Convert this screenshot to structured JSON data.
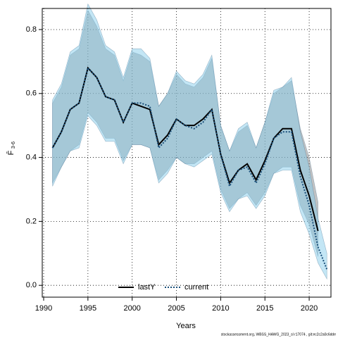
{
  "chart_data": {
    "type": "line",
    "xlabel": "Years",
    "ylabel": "F̄",
    "ylabel_sub": "3-6",
    "footer": "stockassessment.org, WBSS_HAWG_2023_sl r17074 , git:ec2c2a0c6dde",
    "x": [
      1991,
      1992,
      1993,
      1994,
      1995,
      1996,
      1997,
      1998,
      1999,
      2000,
      2001,
      2002,
      2003,
      2004,
      2005,
      2006,
      2007,
      2008,
      2009,
      2010,
      2011,
      2012,
      2013,
      2014,
      2015,
      2016,
      2017,
      2018,
      2019,
      2020,
      2021,
      2022
    ],
    "series": [
      {
        "name": "lastY",
        "color": "#000000",
        "band_color": "rgba(120,120,120,0.45)",
        "values": [
          0.43,
          0.48,
          0.55,
          0.57,
          0.68,
          0.65,
          0.59,
          0.58,
          0.51,
          0.57,
          0.56,
          0.55,
          0.44,
          0.47,
          0.52,
          0.5,
          0.5,
          0.52,
          0.55,
          0.41,
          0.32,
          0.36,
          0.38,
          0.33,
          0.39,
          0.46,
          0.49,
          0.49,
          0.36,
          0.28,
          0.17,
          null
        ],
        "upper": [
          0.57,
          0.62,
          0.72,
          0.74,
          0.86,
          0.81,
          0.74,
          0.72,
          0.64,
          0.73,
          0.72,
          0.7,
          0.56,
          0.6,
          0.66,
          0.63,
          0.62,
          0.65,
          0.71,
          0.5,
          0.42,
          0.48,
          0.5,
          0.43,
          0.51,
          0.6,
          0.62,
          0.64,
          0.49,
          0.4,
          0.26,
          null
        ],
        "lower": [
          0.32,
          0.37,
          0.42,
          0.44,
          0.54,
          0.51,
          0.46,
          0.46,
          0.39,
          0.44,
          0.44,
          0.43,
          0.33,
          0.36,
          0.4,
          0.38,
          0.38,
          0.4,
          0.42,
          0.3,
          0.24,
          0.27,
          0.29,
          0.25,
          0.29,
          0.35,
          0.37,
          0.37,
          0.25,
          0.19,
          0.09,
          null
        ]
      },
      {
        "name": "current",
        "color": "#1a4f7a",
        "band_color": "rgba(135,206,235,0.5)",
        "values": [
          0.43,
          0.48,
          0.55,
          0.57,
          0.68,
          0.65,
          0.59,
          0.58,
          0.51,
          0.57,
          0.57,
          0.56,
          0.43,
          0.46,
          0.52,
          0.5,
          0.49,
          0.51,
          0.55,
          0.41,
          0.31,
          0.36,
          0.37,
          0.32,
          0.38,
          0.46,
          0.48,
          0.48,
          0.34,
          0.25,
          0.12,
          0.05
        ],
        "upper": [
          0.58,
          0.63,
          0.73,
          0.75,
          0.88,
          0.83,
          0.75,
          0.73,
          0.65,
          0.74,
          0.74,
          0.71,
          0.56,
          0.6,
          0.67,
          0.64,
          0.63,
          0.66,
          0.72,
          0.5,
          0.42,
          0.49,
          0.51,
          0.43,
          0.51,
          0.61,
          0.62,
          0.65,
          0.48,
          0.37,
          0.21,
          0.1
        ],
        "lower": [
          0.31,
          0.37,
          0.42,
          0.43,
          0.53,
          0.5,
          0.45,
          0.45,
          0.38,
          0.44,
          0.44,
          0.43,
          0.32,
          0.35,
          0.4,
          0.38,
          0.37,
          0.39,
          0.41,
          0.29,
          0.23,
          0.27,
          0.28,
          0.24,
          0.28,
          0.35,
          0.36,
          0.36,
          0.23,
          0.16,
          0.07,
          0.02
        ]
      }
    ],
    "xlim": [
      1989.84,
      2022.46
    ],
    "ylim": [
      -0.037,
      0.866
    ],
    "xticks": [
      1990,
      1995,
      2000,
      2005,
      2010,
      2015,
      2020
    ],
    "yticks": [
      {
        "value": 0,
        "label": "0.0"
      },
      0.2,
      0.4,
      0.6,
      0.8
    ],
    "grid": true,
    "legend": "bottom"
  }
}
